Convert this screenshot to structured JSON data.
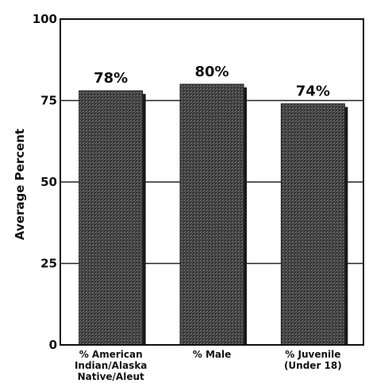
{
  "chart_data": {
    "type": "bar",
    "categories": [
      [
        "% American",
        "Indian/Alaska",
        "Native/Aleut"
      ],
      [
        "% Male"
      ],
      [
        "% Juvenile",
        "(Under 18)"
      ]
    ],
    "values": [
      78,
      80,
      74
    ],
    "data_labels": [
      "78%",
      "80%",
      "74%"
    ],
    "title": "",
    "xlabel": "",
    "ylabel": "Average Percent",
    "ylim": [
      0,
      100
    ],
    "yticks": [
      "0",
      "25",
      "50",
      "75",
      "100"
    ],
    "grid": true,
    "bar_color": "#4a4a4a"
  }
}
